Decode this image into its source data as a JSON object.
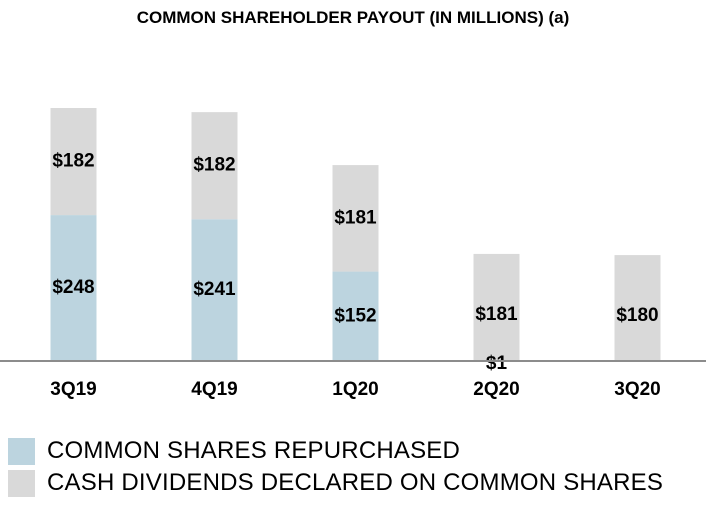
{
  "chart_data": {
    "type": "bar",
    "stacked": true,
    "title": "COMMON SHAREHOLDER PAYOUT (IN MILLIONS) (a)",
    "categories": [
      "3Q19",
      "4Q19",
      "1Q20",
      "2Q20",
      "3Q20"
    ],
    "series": [
      {
        "name": "COMMON SHARES REPURCHASED",
        "color": "#bcd4df",
        "values": [
          248,
          241,
          152,
          1,
          0
        ],
        "labels": [
          "$248",
          "$241",
          "$152",
          "$1",
          ""
        ]
      },
      {
        "name": "CASH DIVIDENDS DECLARED ON COMMON SHARES",
        "color": "#d9d9d9",
        "values": [
          182,
          182,
          181,
          181,
          180
        ],
        "labels": [
          "$182",
          "$182",
          "$181",
          "$181",
          "$180"
        ]
      }
    ],
    "ylim": [
      0,
      430
    ],
    "grid": false,
    "legend_position": "bottom-left"
  }
}
